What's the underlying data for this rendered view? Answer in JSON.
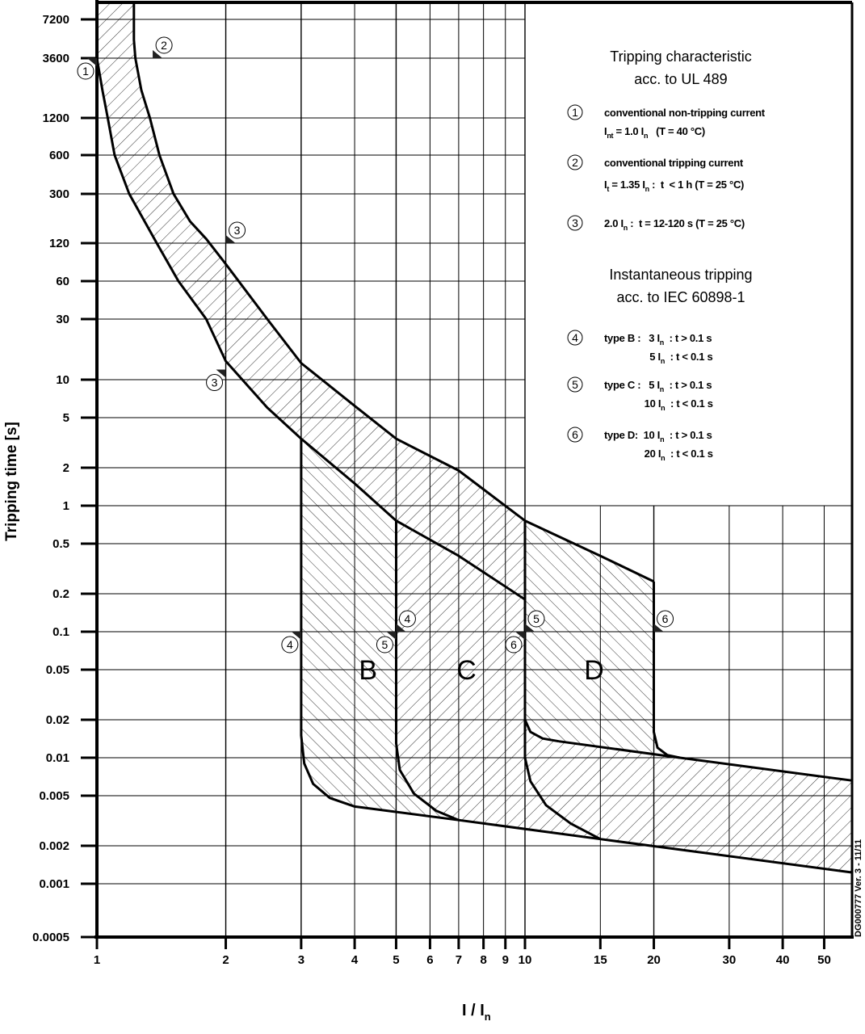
{
  "chart_data": {
    "type": "area",
    "xlabel": {
      "main": "I / I",
      "sub": "n"
    },
    "ylabel": "Tripping time [s]",
    "x_scale": "log",
    "y_scale": "log",
    "xlim": [
      1,
      58
    ],
    "ylim": [
      0.0005,
      7200
    ],
    "grid": true,
    "x_ticks": [
      1,
      2,
      3,
      4,
      5,
      6,
      7,
      8,
      9,
      10,
      15,
      20,
      30,
      40,
      50
    ],
    "x_tick_labels": [
      "1",
      "2",
      "3",
      "4",
      "5",
      "6",
      "7",
      "8",
      "9",
      "10",
      "15",
      "20",
      "30",
      "40",
      "50"
    ],
    "y_ticks": [
      7200,
      3600,
      1200,
      600,
      300,
      120,
      60,
      30,
      10,
      5,
      2,
      1,
      0.5,
      0.2,
      0.1,
      0.05,
      0.02,
      0.01,
      0.005,
      0.002,
      0.001,
      0.0005
    ],
    "y_tick_labels": [
      "7200",
      "3600",
      "1200",
      "600",
      "300",
      "120",
      "60",
      "30",
      "10",
      "5",
      "2",
      "1",
      "0.5",
      "0.2",
      "0.1",
      "0.05",
      "0.02",
      "0.01",
      "0.005",
      "0.002",
      "0.001",
      "0.0005"
    ],
    "curves": {
      "thermal_upper": [
        [
          1.22,
          10000
        ],
        [
          1.22,
          5000
        ],
        [
          1.23,
          3600
        ],
        [
          1.27,
          2000
        ],
        [
          1.33,
          1200
        ],
        [
          1.4,
          600
        ],
        [
          1.51,
          300
        ],
        [
          1.65,
          180
        ],
        [
          1.8,
          130
        ],
        [
          2,
          82
        ],
        [
          2.5,
          30
        ],
        [
          3,
          13.5
        ],
        [
          4,
          6.2
        ],
        [
          5,
          3.4
        ],
        [
          7,
          1.9
        ],
        [
          10,
          0.76
        ],
        [
          15,
          0.4
        ],
        [
          20,
          0.25
        ]
      ],
      "thermal_lower": [
        [
          1,
          10000
        ],
        [
          1,
          3600
        ],
        [
          1.03,
          2000
        ],
        [
          1.06,
          1200
        ],
        [
          1.1,
          600
        ],
        [
          1.19,
          300
        ],
        [
          1.38,
          120
        ],
        [
          1.55,
          60
        ],
        [
          1.8,
          30
        ],
        [
          2,
          14
        ],
        [
          2.5,
          6
        ],
        [
          3,
          3.4
        ],
        [
          4,
          1.5
        ],
        [
          5,
          0.76
        ],
        [
          7,
          0.4
        ],
        [
          10,
          0.18
        ]
      ],
      "b_knee": [
        [
          3,
          0.015
        ],
        [
          3.05,
          0.009
        ],
        [
          3.2,
          0.0062
        ],
        [
          3.5,
          0.0048
        ],
        [
          4,
          0.0041
        ]
      ],
      "c_knee": [
        [
          5,
          0.013
        ],
        [
          5.1,
          0.008
        ],
        [
          5.5,
          0.0052
        ],
        [
          6.2,
          0.0038
        ],
        [
          7,
          0.0032
        ]
      ],
      "d_lower_knee": [
        [
          10,
          0.01
        ],
        [
          10.3,
          0.0065
        ],
        [
          11.2,
          0.0042
        ],
        [
          12.8,
          0.003
        ],
        [
          15,
          0.00226
        ]
      ],
      "d_upper_knee": [
        [
          10,
          0.02
        ],
        [
          10.3,
          0.016
        ],
        [
          11,
          0.0142
        ],
        [
          12,
          0.0135
        ]
      ],
      "d_right_knee": [
        [
          20,
          0.016
        ],
        [
          20.4,
          0.012
        ],
        [
          21.5,
          0.0105
        ],
        [
          23,
          0.01
        ]
      ],
      "instant_upper_line": [
        [
          12,
          0.0135
        ],
        [
          23,
          0.01
        ],
        [
          58,
          0.0066
        ]
      ],
      "instant_lower_line": [
        [
          4,
          0.0041
        ],
        [
          7,
          0.0032
        ],
        [
          15,
          0.00226
        ],
        [
          58,
          0.00123
        ]
      ]
    },
    "regions": [
      {
        "label": "B",
        "x_range": [
          3,
          5
        ],
        "label_at": [
          4.3,
          0.05
        ]
      },
      {
        "label": "C",
        "x_range": [
          5,
          10
        ],
        "label_at": [
          7.3,
          0.05
        ]
      },
      {
        "label": "D",
        "x_range": [
          10,
          20
        ],
        "label_at": [
          14.5,
          0.05
        ]
      }
    ],
    "markers": [
      {
        "num": "1",
        "x": 1,
        "y": 3600,
        "side": "left-below"
      },
      {
        "num": "2",
        "x": 1.35,
        "y": 3600,
        "side": "right-above"
      },
      {
        "num": "3",
        "x": 2,
        "y": 120,
        "side": "right-above"
      },
      {
        "num": "3",
        "x": 2,
        "y": 12,
        "side": "left-below"
      },
      {
        "num": "4",
        "x": 3,
        "y": 0.1,
        "side": "left-below"
      },
      {
        "num": "4",
        "x": 5,
        "y": 0.1,
        "side": "right-above"
      },
      {
        "num": "5",
        "x": 5,
        "y": 0.1,
        "side": "left-below"
      },
      {
        "num": "5",
        "x": 10,
        "y": 0.1,
        "side": "right-above"
      },
      {
        "num": "6",
        "x": 10,
        "y": 0.1,
        "side": "left-below"
      },
      {
        "num": "6",
        "x": 20,
        "y": 0.1,
        "side": "right-above"
      }
    ],
    "legend": {
      "title1": [
        "Tripping characteristic",
        "acc. to UL 489"
      ],
      "title2": [
        "Instantaneous tripping",
        "acc. to IEC 60898-1"
      ],
      "items": [
        {
          "num": "1",
          "lines": [
            [
              {
                "t": "conventional non-tripping current"
              }
            ],
            [
              {
                "t": "I"
              },
              {
                "t": "nt",
                "sub": true
              },
              {
                "t": " = 1.0 I"
              },
              {
                "t": "n",
                "sub": true
              },
              {
                "t": "   (T = 40 °C)"
              }
            ]
          ]
        },
        {
          "num": "2",
          "lines": [
            [
              {
                "t": "conventional tripping current"
              }
            ],
            [
              {
                "t": "I"
              },
              {
                "t": "t",
                "sub": true
              },
              {
                "t": " = 1.35 I"
              },
              {
                "t": "n",
                "sub": true
              },
              {
                "t": " :  t  < 1 h (T = 25 °C)"
              }
            ]
          ]
        },
        {
          "num": "3",
          "lines": [
            [
              {
                "t": "2.0 I"
              },
              {
                "t": "n",
                "sub": true
              },
              {
                "t": " :  t = 12-120 s (T = 25 °C)"
              }
            ]
          ]
        },
        {
          "num": "4",
          "lines": [
            [
              {
                "t": "type B :   3 I"
              },
              {
                "t": "n",
                "sub": true
              },
              {
                "t": "  : t > 0.1 s"
              }
            ],
            [
              {
                "t": "                 5 I"
              },
              {
                "t": "n",
                "sub": true
              },
              {
                "t": "  : t < 0.1 s"
              }
            ]
          ]
        },
        {
          "num": "5",
          "lines": [
            [
              {
                "t": "type C :   5 I"
              },
              {
                "t": "n",
                "sub": true
              },
              {
                "t": "  : t > 0.1 s"
              }
            ],
            [
              {
                "t": "               10 I"
              },
              {
                "t": "n",
                "sub": true
              },
              {
                "t": "  : t < 0.1 s"
              }
            ]
          ]
        },
        {
          "num": "6",
          "lines": [
            [
              {
                "t": "type D:  10 I"
              },
              {
                "t": "n",
                "sub": true
              },
              {
                "t": "  : t > 0.1 s"
              }
            ],
            [
              {
                "t": "               20 I"
              },
              {
                "t": "n",
                "sub": true
              },
              {
                "t": "  : t < 0.1 s"
              }
            ]
          ]
        }
      ]
    },
    "doc_code": "DG000777 Ver. 3 - 11/11"
  }
}
